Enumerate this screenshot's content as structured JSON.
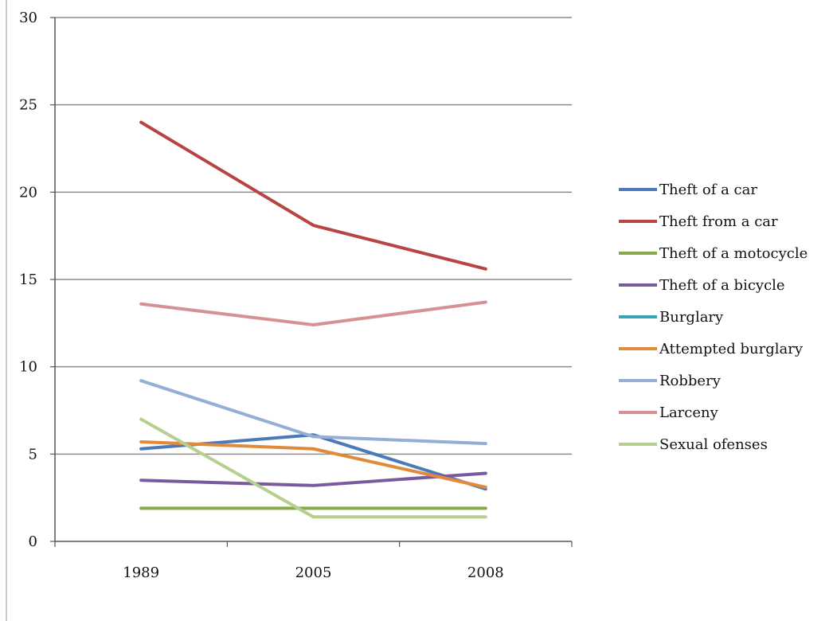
{
  "chart_data": {
    "type": "line",
    "title": "",
    "xlabel": "",
    "ylabel": "",
    "categories": [
      "1989",
      "2005",
      "2008"
    ],
    "ylim": [
      0,
      30
    ],
    "yticks": [
      0,
      5,
      10,
      15,
      20,
      25,
      30
    ],
    "grid": true,
    "legend_position": "right",
    "series": [
      {
        "name": "Theft of a car",
        "color": "#4a7ab8",
        "values": [
          5.3,
          6.1,
          3.0
        ]
      },
      {
        "name": "Theft from a car",
        "color": "#b84444",
        "values": [
          24.0,
          18.1,
          15.6
        ]
      },
      {
        "name": "Theft of a motocycle",
        "color": "#86a94a",
        "values": [
          1.9,
          1.9,
          1.9
        ]
      },
      {
        "name": "Theft of a bicycle",
        "color": "#7a5a9e",
        "values": [
          3.5,
          3.2,
          3.9
        ]
      },
      {
        "name": "Burglary",
        "color": "#3aa2b8",
        "values": [
          null,
          null,
          null
        ]
      },
      {
        "name": "Attempted burglary",
        "color": "#e08a3c",
        "values": [
          5.7,
          5.3,
          3.1
        ]
      },
      {
        "name": "Robbery",
        "color": "#94aed6",
        "values": [
          9.2,
          6.0,
          5.6
        ]
      },
      {
        "name": "Larceny",
        "color": "#d69292",
        "values": [
          13.6,
          12.4,
          13.7
        ]
      },
      {
        "name": "Sexual ofenses",
        "color": "#b6cf8f",
        "values": [
          7.0,
          1.4,
          1.4
        ]
      }
    ]
  }
}
